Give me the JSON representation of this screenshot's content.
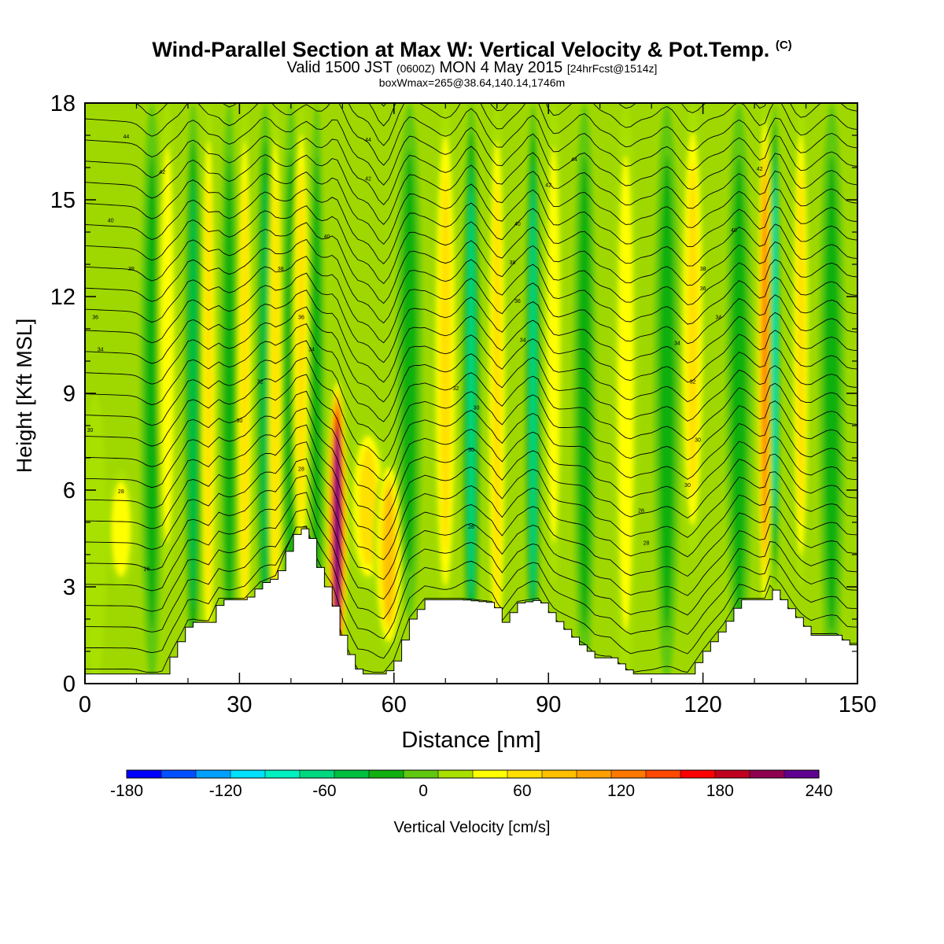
{
  "title": {
    "main": "Wind-Parallel Section at Max W: Vertical Velocity & Pot.Temp.",
    "copyright": "(C)",
    "valid_prefix": "Valid 1500 JST",
    "valid_utc": "(0600Z)",
    "valid_date": "MON 4 May 2015",
    "forecast": "[24hrFcst@1514z]",
    "box_info": "boxWmax=265@38.64,140.14,1746m"
  },
  "chart_data": {
    "type": "heatmap",
    "xlabel": "Distance [nm]",
    "ylabel": "Height [Kft MSL]",
    "xlim": [
      0,
      150
    ],
    "ylim": [
      0,
      18
    ],
    "x_ticks": [
      "0",
      "30",
      "60",
      "90",
      "120",
      "150"
    ],
    "y_ticks": [
      "0",
      "3",
      "6",
      "9",
      "12",
      "15",
      "18"
    ],
    "colorbar": {
      "label": "Vertical Velocity [cm/s]",
      "min": -180,
      "max": 240,
      "step": 20,
      "tick_labels": [
        "-180",
        "-120",
        "-60",
        "0",
        "60",
        "120",
        "180",
        "240"
      ],
      "colors": [
        "#0000ff",
        "#0050ff",
        "#00a0ff",
        "#00e0ff",
        "#00f0c0",
        "#00d880",
        "#00c040",
        "#10b010",
        "#60c810",
        "#a8e000",
        "#ffff00",
        "#ffe000",
        "#ffc000",
        "#ffa000",
        "#ff7800",
        "#ff4800",
        "#ff0000",
        "#c00020",
        "#900050",
        "#600090"
      ]
    },
    "terrain_kft": [
      [
        0,
        0.3
      ],
      [
        15,
        0.3
      ],
      [
        17,
        1.0
      ],
      [
        20,
        1.9
      ],
      [
        24,
        1.9
      ],
      [
        26,
        2.6
      ],
      [
        31,
        2.6
      ],
      [
        34,
        3.1
      ],
      [
        37,
        3.3
      ],
      [
        39,
        4.1
      ],
      [
        41,
        4.8
      ],
      [
        43,
        4.8
      ],
      [
        45,
        3.6
      ],
      [
        48,
        2.4
      ],
      [
        50,
        1.2
      ],
      [
        53,
        0.3
      ],
      [
        58,
        0.3
      ],
      [
        60,
        0.7
      ],
      [
        63,
        2.0
      ],
      [
        66,
        2.6
      ],
      [
        73,
        2.6
      ],
      [
        79,
        2.5
      ],
      [
        81,
        1.9
      ],
      [
        84,
        2.5
      ],
      [
        88,
        2.6
      ],
      [
        91,
        2.0
      ],
      [
        96,
        1.2
      ],
      [
        99,
        0.8
      ],
      [
        102,
        0.8
      ],
      [
        106,
        0.3
      ],
      [
        117,
        0.3
      ],
      [
        120,
        1.0
      ],
      [
        124,
        1.8
      ],
      [
        127,
        2.6
      ],
      [
        132,
        2.6
      ],
      [
        133,
        3.0
      ],
      [
        135,
        2.6
      ],
      [
        141,
        1.5
      ],
      [
        146,
        1.5
      ],
      [
        148,
        1.2
      ],
      [
        150,
        1.2
      ]
    ],
    "updraft_bands": [
      {
        "x": 2,
        "w": 2.2,
        "z0": 0,
        "z1": 9,
        "value": 5
      },
      {
        "x": 7,
        "w": 3.0,
        "z0": 3,
        "z1": 6.6,
        "value": 45
      },
      {
        "x": 13,
        "w": 2.2,
        "z0": 0,
        "z1": 18,
        "value": -30
      },
      {
        "x": 16,
        "w": 2.0,
        "z0": 3,
        "z1": 18,
        "value": 45
      },
      {
        "x": 21,
        "w": 1.8,
        "z0": 0,
        "z1": 18,
        "value": -55
      },
      {
        "x": 24,
        "w": 1.6,
        "z0": 0,
        "z1": 18,
        "value": 50
      },
      {
        "x": 28,
        "w": 1.8,
        "z0": 0,
        "z1": 18,
        "value": -45
      },
      {
        "x": 31,
        "w": 1.6,
        "z0": 0,
        "z1": 18,
        "value": 55
      },
      {
        "x": 35,
        "w": 1.8,
        "z0": 0,
        "z1": 18,
        "value": -50
      },
      {
        "x": 37,
        "w": 1.5,
        "z0": 0,
        "z1": 18,
        "value": 60
      },
      {
        "x": 40,
        "w": 1.8,
        "z0": 0,
        "z1": 18,
        "value": -40
      },
      {
        "x": 42,
        "w": 1.8,
        "z0": 3,
        "z1": 18,
        "value": 55
      },
      {
        "x": 45,
        "w": 1.5,
        "z0": 0,
        "z1": 18,
        "value": -35
      },
      {
        "x": 49,
        "w": 2.0,
        "z0": 0,
        "z1": 9.5,
        "value": 240
      },
      {
        "x": 55,
        "w": 4.0,
        "z0": 3,
        "z1": 8,
        "value": 65
      },
      {
        "x": 59,
        "w": 3.0,
        "z0": 1,
        "z1": 7,
        "value": 85
      },
      {
        "x": 63,
        "w": 2.5,
        "z0": 2,
        "z1": 18,
        "value": -30
      },
      {
        "x": 70,
        "w": 2.5,
        "z0": 2,
        "z1": 18,
        "value": 50
      },
      {
        "x": 75,
        "w": 1.8,
        "z0": 0,
        "z1": 18,
        "value": -70
      },
      {
        "x": 80,
        "w": 2.0,
        "z0": 0,
        "z1": 18,
        "value": 55
      },
      {
        "x": 87,
        "w": 1.6,
        "z0": 0,
        "z1": 18,
        "value": -80
      },
      {
        "x": 91,
        "w": 2.0,
        "z0": 3,
        "z1": 18,
        "value": 45
      },
      {
        "x": 97,
        "w": 2.2,
        "z0": 0,
        "z1": 18,
        "value": -40
      },
      {
        "x": 105,
        "w": 2.5,
        "z0": 0,
        "z1": 18,
        "value": 40
      },
      {
        "x": 113,
        "w": 2.5,
        "z0": 0,
        "z1": 18,
        "value": -30
      },
      {
        "x": 118,
        "w": 2.5,
        "z0": 4,
        "z1": 18,
        "value": 50
      },
      {
        "x": 127,
        "w": 2.5,
        "z0": 0,
        "z1": 18,
        "value": -30
      },
      {
        "x": 132,
        "w": 1.5,
        "z0": 2,
        "z1": 18,
        "value": 110
      },
      {
        "x": 134,
        "w": 1.0,
        "z0": 3,
        "z1": 18,
        "value": -100
      },
      {
        "x": 139,
        "w": 1.8,
        "z0": 3,
        "z1": 18,
        "value": 60
      },
      {
        "x": 145,
        "w": 2.5,
        "z0": 0,
        "z1": 18,
        "value": -30
      }
    ],
    "isentrope_labels": [
      {
        "x": 8,
        "z": 16.9,
        "text": "44"
      },
      {
        "x": 15,
        "z": 15.8,
        "text": "42"
      },
      {
        "x": 5,
        "z": 14.3,
        "text": "40"
      },
      {
        "x": 9,
        "z": 12.8,
        "text": "38"
      },
      {
        "x": 2,
        "z": 11.3,
        "text": "36"
      },
      {
        "x": 3,
        "z": 10.3,
        "text": "34"
      },
      {
        "x": 1,
        "z": 7.8,
        "text": "30"
      },
      {
        "x": 7,
        "z": 5.9,
        "text": "28"
      },
      {
        "x": 12,
        "z": 3.5,
        "text": "26"
      },
      {
        "x": 55,
        "z": 16.8,
        "text": "44"
      },
      {
        "x": 55,
        "z": 15.6,
        "text": "42"
      },
      {
        "x": 47,
        "z": 13.8,
        "text": "40"
      },
      {
        "x": 38,
        "z": 12.8,
        "text": "38"
      },
      {
        "x": 42,
        "z": 11.3,
        "text": "36"
      },
      {
        "x": 44,
        "z": 10.3,
        "text": "34"
      },
      {
        "x": 34,
        "z": 9.3,
        "text": "32"
      },
      {
        "x": 30,
        "z": 8.1,
        "text": "30"
      },
      {
        "x": 42,
        "z": 6.6,
        "text": "28"
      },
      {
        "x": 95,
        "z": 16.2,
        "text": "44"
      },
      {
        "x": 90,
        "z": 15.4,
        "text": "42"
      },
      {
        "x": 84,
        "z": 14.2,
        "text": "40"
      },
      {
        "x": 83,
        "z": 13.0,
        "text": "38"
      },
      {
        "x": 84,
        "z": 11.8,
        "text": "36"
      },
      {
        "x": 85,
        "z": 10.6,
        "text": "34"
      },
      {
        "x": 72,
        "z": 9.1,
        "text": "32"
      },
      {
        "x": 76,
        "z": 8.5,
        "text": "30"
      },
      {
        "x": 75,
        "z": 7.2,
        "text": "30"
      },
      {
        "x": 75,
        "z": 4.8,
        "text": "28"
      },
      {
        "x": 131,
        "z": 15.9,
        "text": "42"
      },
      {
        "x": 126,
        "z": 14.0,
        "text": "40"
      },
      {
        "x": 120,
        "z": 12.8,
        "text": "38"
      },
      {
        "x": 120,
        "z": 12.2,
        "text": "36"
      },
      {
        "x": 123,
        "z": 11.3,
        "text": "34"
      },
      {
        "x": 115,
        "z": 10.5,
        "text": "34"
      },
      {
        "x": 118,
        "z": 9.3,
        "text": "32"
      },
      {
        "x": 119,
        "z": 7.5,
        "text": "30"
      },
      {
        "x": 117,
        "z": 6.1,
        "text": "30"
      },
      {
        "x": 108,
        "z": 5.3,
        "text": "28"
      },
      {
        "x": 109,
        "z": 4.3,
        "text": "28"
      }
    ]
  }
}
